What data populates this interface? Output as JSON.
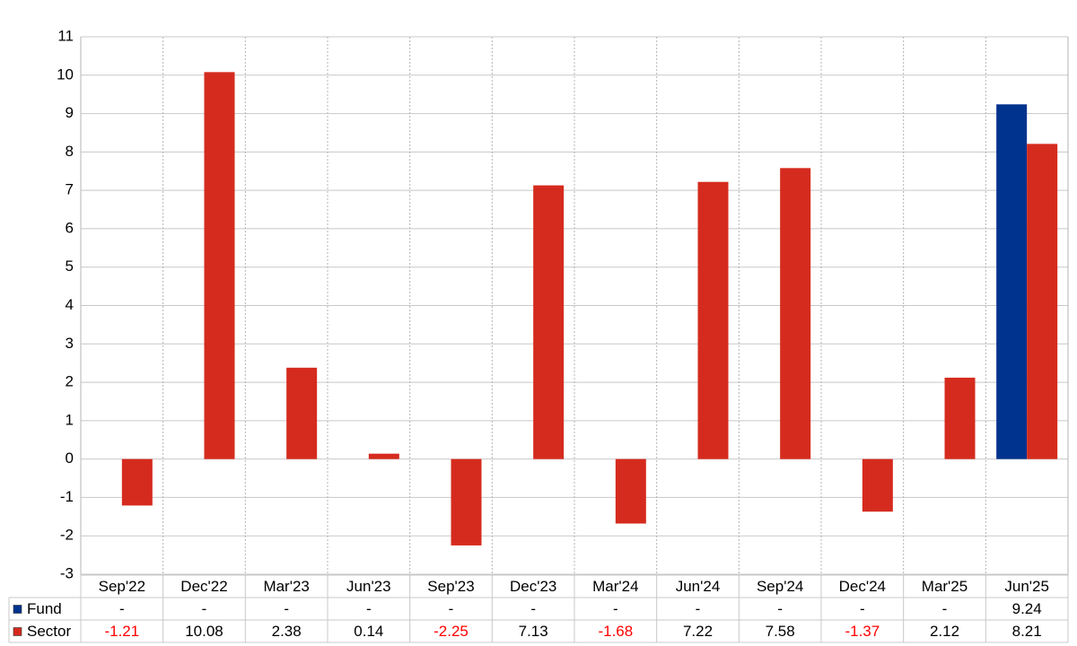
{
  "chart_data": {
    "type": "bar",
    "categories": [
      "Sep'22",
      "Dec'22",
      "Mar'23",
      "Jun'23",
      "Sep'23",
      "Dec'23",
      "Mar'24",
      "Jun'24",
      "Sep'24",
      "Dec'24",
      "Mar'25",
      "Jun'25"
    ],
    "series": [
      {
        "name": "Fund",
        "color": "#00338d",
        "values": [
          null,
          null,
          null,
          null,
          null,
          null,
          null,
          null,
          null,
          null,
          null,
          9.24
        ],
        "value_labels": [
          "-",
          "-",
          "-",
          "-",
          "-",
          "-",
          "-",
          "-",
          "-",
          "-",
          "-",
          "9.24"
        ]
      },
      {
        "name": "Sector",
        "color": "#d52b1e",
        "values": [
          -1.21,
          10.08,
          2.38,
          0.14,
          -2.25,
          7.13,
          -1.68,
          7.22,
          7.58,
          -1.37,
          2.12,
          8.21
        ]
      }
    ],
    "ylim": [
      -3,
      11
    ],
    "yticks": [
      -3,
      -2,
      -1,
      0,
      1,
      2,
      3,
      4,
      5,
      6,
      7,
      8,
      9,
      10,
      11
    ],
    "grid": true,
    "negative_color": "#ff0000"
  }
}
